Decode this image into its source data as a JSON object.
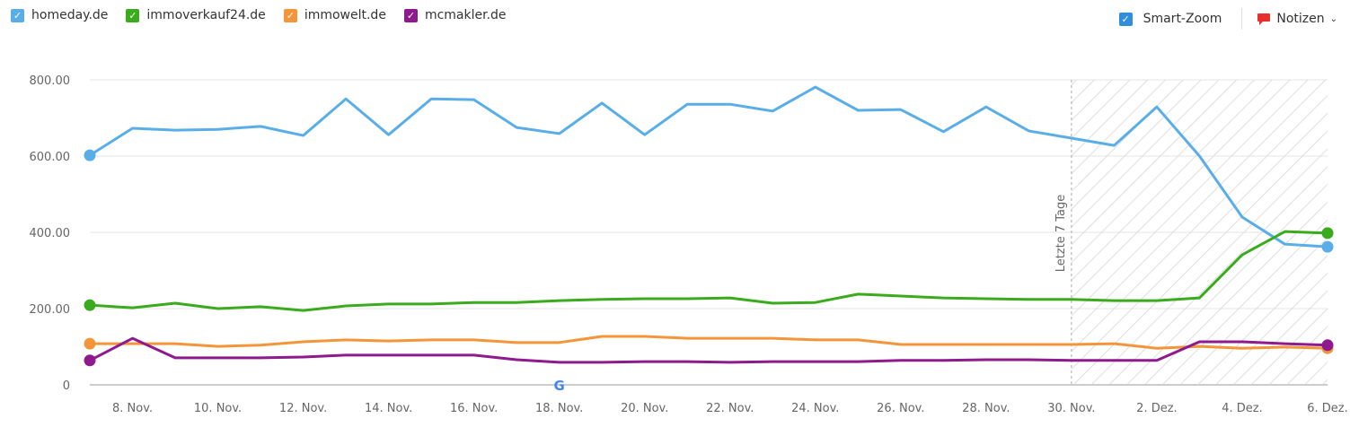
{
  "legend": [
    {
      "label": "homeday.de",
      "color": "#5aaee8",
      "checked": true
    },
    {
      "label": "immoverkauf24.de",
      "color": "#3bab1e",
      "checked": true
    },
    {
      "label": "immowelt.de",
      "color": "#f5953a",
      "checked": true
    },
    {
      "label": "mcmakler.de",
      "color": "#8e1a8e",
      "checked": true
    }
  ],
  "controls": {
    "smart_zoom_label": "Smart-Zoom",
    "smart_zoom_checked": true,
    "notes_label": "Notizen",
    "notes_icon": "speech-bubble-icon",
    "notes_color": "#e8302b"
  },
  "chart_data": {
    "type": "line",
    "x": [
      "7. Nov.",
      "8. Nov.",
      "9. Nov.",
      "10. Nov.",
      "11. Nov.",
      "12. Nov.",
      "13. Nov.",
      "14. Nov.",
      "15. Nov.",
      "16. Nov.",
      "17. Nov.",
      "18. Nov.",
      "19. Nov.",
      "20. Nov.",
      "21. Nov.",
      "22. Nov.",
      "23. Nov.",
      "24. Nov.",
      "25. Nov.",
      "26. Nov.",
      "27. Nov.",
      "28. Nov.",
      "29. Nov.",
      "30. Nov.",
      "1. Dez.",
      "2. Dez.",
      "3. Dez.",
      "4. Dez.",
      "5. Dez.",
      "6. Dez."
    ],
    "xtick_labels": [
      "8. Nov.",
      "10. Nov.",
      "12. Nov.",
      "14. Nov.",
      "16. Nov.",
      "18. Nov.",
      "20. Nov.",
      "22. Nov.",
      "24. Nov.",
      "26. Nov.",
      "28. Nov.",
      "30. Nov.",
      "2. Dez.",
      "4. Dez.",
      "6. Dez."
    ],
    "ytick_labels": [
      "0",
      "200.00",
      "400.00",
      "600.00",
      "800.00"
    ],
    "ylim": [
      0,
      800
    ],
    "grid": true,
    "series": [
      {
        "name": "homeday.de",
        "color": "#5aaee8",
        "values": [
          602,
          673,
          668,
          670,
          678,
          654,
          750,
          656,
          750,
          748,
          675,
          659,
          739,
          656,
          736,
          736,
          718,
          781,
          720,
          722,
          664,
          729,
          666,
          647,
          628,
          729,
          600,
          440,
          369,
          362
        ]
      },
      {
        "name": "immoverkauf24.de",
        "color": "#3bab1e",
        "values": [
          209,
          202,
          214,
          200,
          205,
          195,
          207,
          212,
          212,
          216,
          216,
          221,
          224,
          226,
          226,
          228,
          214,
          216,
          238,
          233,
          228,
          226,
          224,
          224,
          221,
          221,
          228,
          341,
          402,
          398
        ]
      },
      {
        "name": "immowelt.de",
        "color": "#f5953a",
        "values": [
          108,
          108,
          108,
          101,
          104,
          113,
          118,
          115,
          118,
          118,
          111,
          111,
          127,
          127,
          122,
          122,
          122,
          118,
          118,
          106,
          106,
          106,
          106,
          106,
          108,
          96,
          101,
          96,
          99,
          96
        ]
      },
      {
        "name": "mcmakler.de",
        "color": "#8e1a8e",
        "values": [
          64,
          122,
          71,
          71,
          71,
          73,
          78,
          78,
          78,
          78,
          66,
          59,
          59,
          61,
          61,
          59,
          61,
          61,
          61,
          64,
          64,
          66,
          66,
          64,
          64,
          64,
          113,
          113,
          108,
          104
        ]
      }
    ],
    "annotations": [
      {
        "label": "Letzte 7 Tage",
        "from": "30. Nov.",
        "to": "6. Dez.",
        "style": "hatched"
      },
      {
        "label": "G",
        "at": "18. Nov.",
        "icon": "google-icon"
      }
    ]
  }
}
